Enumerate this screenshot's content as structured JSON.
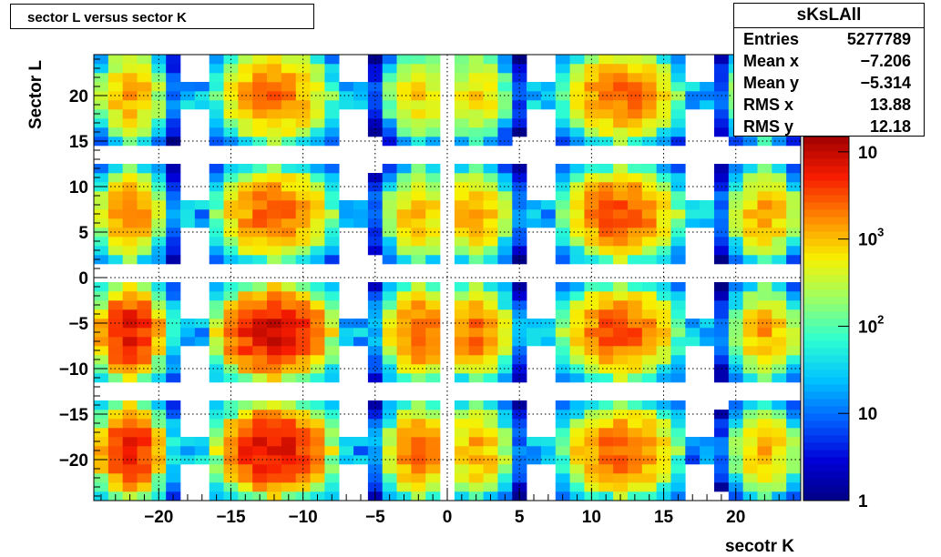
{
  "title": "sector L versus sector K",
  "stats": {
    "name": "sKsLAll",
    "rows": [
      {
        "label": "Entries",
        "value": "5277789"
      },
      {
        "label": "Mean x",
        "value": "−7.206"
      },
      {
        "label": "Mean y",
        "value": "−5.314"
      },
      {
        "label": "RMS x",
        "value": "13.88"
      },
      {
        "label": "RMS y",
        "value": "12.18"
      }
    ]
  },
  "chart_data": {
    "type": "heatmap",
    "xlabel": "secotr K",
    "ylabel": "Sector L",
    "xlim": [
      -24.5,
      24.5
    ],
    "ylim": [
      -24.5,
      24.5
    ],
    "bin_width": 1,
    "x_ticks": [
      {
        "value": -20,
        "label": "−20"
      },
      {
        "value": -15,
        "label": "−15"
      },
      {
        "value": -10,
        "label": "−10"
      },
      {
        "value": -5,
        "label": "−5"
      },
      {
        "value": 0,
        "label": "0"
      },
      {
        "value": 5,
        "label": "5"
      },
      {
        "value": 10,
        "label": "10"
      },
      {
        "value": 15,
        "label": "15"
      },
      {
        "value": 20,
        "label": "20"
      }
    ],
    "y_ticks": [
      {
        "value": 20,
        "label": "20"
      },
      {
        "value": 15,
        "label": "15"
      },
      {
        "value": 10,
        "label": "10"
      },
      {
        "value": 5,
        "label": "5"
      },
      {
        "value": 0,
        "label": "0"
      },
      {
        "value": -5,
        "label": "−5"
      },
      {
        "value": -10,
        "label": "−10"
      },
      {
        "value": -15,
        "label": "−15"
      },
      {
        "value": -20,
        "label": "−20"
      }
    ],
    "grid": true,
    "z_scale": "log",
    "z_range": [
      1,
      15000
    ],
    "z_ticks": [
      {
        "value": 1,
        "base": "1",
        "exp": ""
      },
      {
        "value": 10,
        "base": "10",
        "exp": ""
      },
      {
        "value": 100,
        "base": "10",
        "exp": "2"
      },
      {
        "value": 1000,
        "base": "10",
        "exp": "3"
      },
      {
        "value": 10000,
        "base": "10",
        "exp": ""
      }
    ],
    "blobs_x": [
      -22,
      -12,
      -2,
      2,
      12,
      22
    ],
    "blobs_y": [
      20,
      7,
      -6,
      -19
    ],
    "peak_counts": {
      "row_20": [
        1500,
        2500,
        800,
        800,
        2500,
        1000
      ],
      "row_7": [
        2000,
        3000,
        1200,
        1500,
        3500,
        1500
      ],
      "row_-6": [
        7000,
        9000,
        3000,
        2500,
        3500,
        1500
      ],
      "row_-19": [
        6000,
        8000,
        2500,
        1500,
        3000,
        1200
      ]
    },
    "empty_columns": [
      0
    ],
    "palette": [
      "#000084",
      "#0000d8",
      "#0060ff",
      "#00c4ff",
      "#30ffd0",
      "#9cff64",
      "#f8f000",
      "#ff8800",
      "#f81c00",
      "#a00000"
    ]
  }
}
